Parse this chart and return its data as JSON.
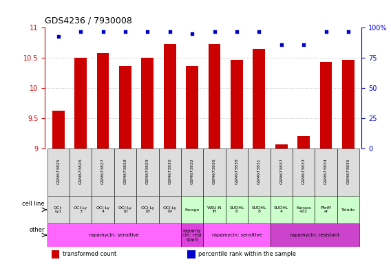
{
  "title": "GDS4236 / 7930008",
  "samples": [
    "GSM673825",
    "GSM673826",
    "GSM673827",
    "GSM673828",
    "GSM673829",
    "GSM673830",
    "GSM673832",
    "GSM673836",
    "GSM673838",
    "GSM673831",
    "GSM673837",
    "GSM673833",
    "GSM673834",
    "GSM673835"
  ],
  "bar_values": [
    9.63,
    10.5,
    10.58,
    10.37,
    10.5,
    10.73,
    10.37,
    10.73,
    10.47,
    10.65,
    9.07,
    9.2,
    10.43,
    10.47
  ],
  "dot_values": [
    93,
    97,
    97,
    97,
    97,
    97,
    95,
    97,
    97,
    97,
    86,
    86,
    97,
    97
  ],
  "ylim_left": [
    9,
    11
  ],
  "ylim_right": [
    0,
    100
  ],
  "yticks_left": [
    9,
    9.5,
    10,
    10.5,
    11
  ],
  "yticks_right": [
    0,
    25,
    50,
    75,
    100
  ],
  "bar_color": "#cc0000",
  "dot_color": "#0000cc",
  "cell_lines": [
    "OCI-\nLy1",
    "OCI-Ly\n3",
    "OCI-Ly\n4",
    "OCI-Ly\n10",
    "OCI-Ly\n18",
    "OCI-Ly\n19",
    "Farage",
    "WSU-N\nIH",
    "SUDHL\n6",
    "SUDHL\n8",
    "SUDHL\n4",
    "Karpas\n422",
    "Pfeiff\ner",
    "Toledo"
  ],
  "cell_line_colors": [
    "#dddddd",
    "#dddddd",
    "#dddddd",
    "#dddddd",
    "#dddddd",
    "#dddddd",
    "#ccffcc",
    "#ccffcc",
    "#ccffcc",
    "#ccffcc",
    "#ccffcc",
    "#ccffcc",
    "#ccffcc",
    "#ccffcc"
  ],
  "other_groups": [
    {
      "label": "rapamycin: sensitive",
      "start": 0,
      "end": 5,
      "color": "#ff66ff"
    },
    {
      "label": "rapamy\ncin: resi\nstant",
      "start": 6,
      "end": 6,
      "color": "#dd44dd"
    },
    {
      "label": "rapamycin: sensitive",
      "start": 7,
      "end": 9,
      "color": "#ff66ff"
    },
    {
      "label": "rapamycin: resistant",
      "start": 10,
      "end": 13,
      "color": "#cc44cc"
    }
  ],
  "legend_items": [
    {
      "label": "transformed count",
      "color": "#cc0000"
    },
    {
      "label": "percentile rank within the sample",
      "color": "#0000cc"
    }
  ],
  "background_color": "#ffffff",
  "grid_color": "#aaaaaa",
  "spine_color": "#aaaaaa"
}
